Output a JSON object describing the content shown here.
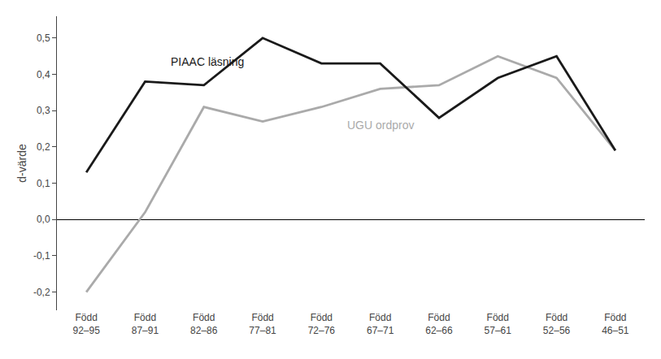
{
  "chart_data": {
    "type": "line",
    "ylabel": "d-värde",
    "categories": [
      "Född\n92–95",
      "Född\n87–91",
      "Född\n82–86",
      "Född\n77–81",
      "Född\n72–76",
      "Född\n67–71",
      "Född\n62–66",
      "Född\n57–61",
      "Född\n52–56",
      "Född\n46–51"
    ],
    "series": [
      {
        "name": "UGU ordprov",
        "color": "#aaaaaa",
        "values": [
          -0.2,
          0.02,
          0.31,
          0.27,
          0.31,
          0.36,
          0.37,
          0.45,
          0.39,
          0.19
        ]
      },
      {
        "name": "PIAAC läsning",
        "color": "#1a1a1a",
        "values": [
          0.13,
          0.38,
          0.37,
          0.5,
          0.43,
          0.43,
          0.28,
          0.39,
          0.45,
          0.19
        ]
      }
    ],
    "ylim": [
      -0.25,
      0.56
    ],
    "yticks": [
      {
        "value": -0.2,
        "label": "-0,2"
      },
      {
        "value": -0.1,
        "label": "-0,1"
      },
      {
        "value": 0.0,
        "label": "0,0"
      },
      {
        "value": 0.1,
        "label": "0,1"
      },
      {
        "value": 0.2,
        "label": "0,2"
      },
      {
        "value": 0.3,
        "label": "0,3"
      },
      {
        "value": 0.4,
        "label": "0,4"
      },
      {
        "value": 0.5,
        "label": "0,5"
      }
    ],
    "grid": false
  }
}
